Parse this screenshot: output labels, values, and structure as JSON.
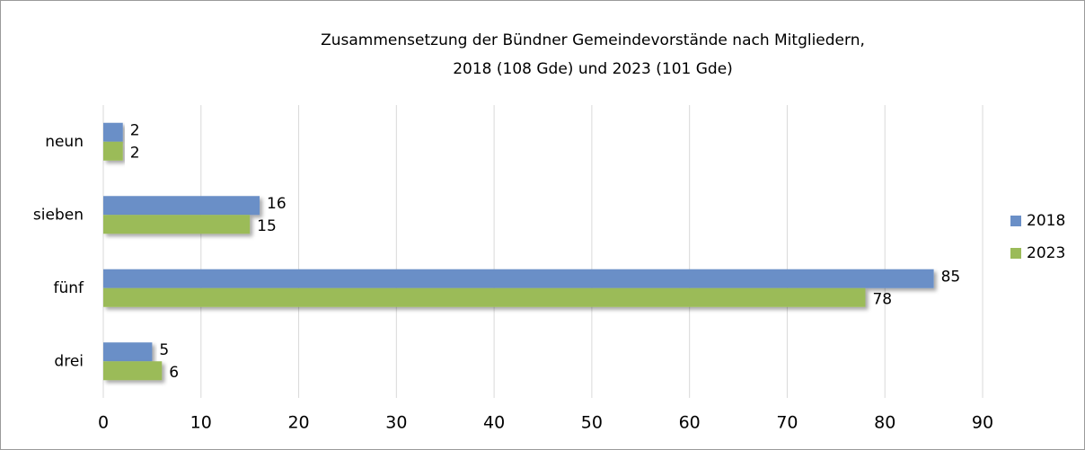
{
  "chart_data": {
    "type": "hbar",
    "title": [
      "Zusammensetzung der Bündner Gemeindevorstände nach Mitgliedern,",
      "2018 (108 Gde) und 2023 (101 Gde)"
    ],
    "categories": [
      "neun",
      "sieben",
      "fünf",
      "drei"
    ],
    "series": [
      {
        "name": "2018",
        "color": "#6a8fc7",
        "values": [
          2,
          16,
          85,
          5
        ]
      },
      {
        "name": "2023",
        "color": "#9bbb59",
        "values": [
          2,
          15,
          78,
          6
        ]
      }
    ],
    "xlim": [
      0,
      90
    ],
    "xticks": [
      0,
      10,
      20,
      30,
      40,
      50,
      60,
      70,
      80,
      90
    ],
    "grid": true,
    "legend": "right"
  }
}
